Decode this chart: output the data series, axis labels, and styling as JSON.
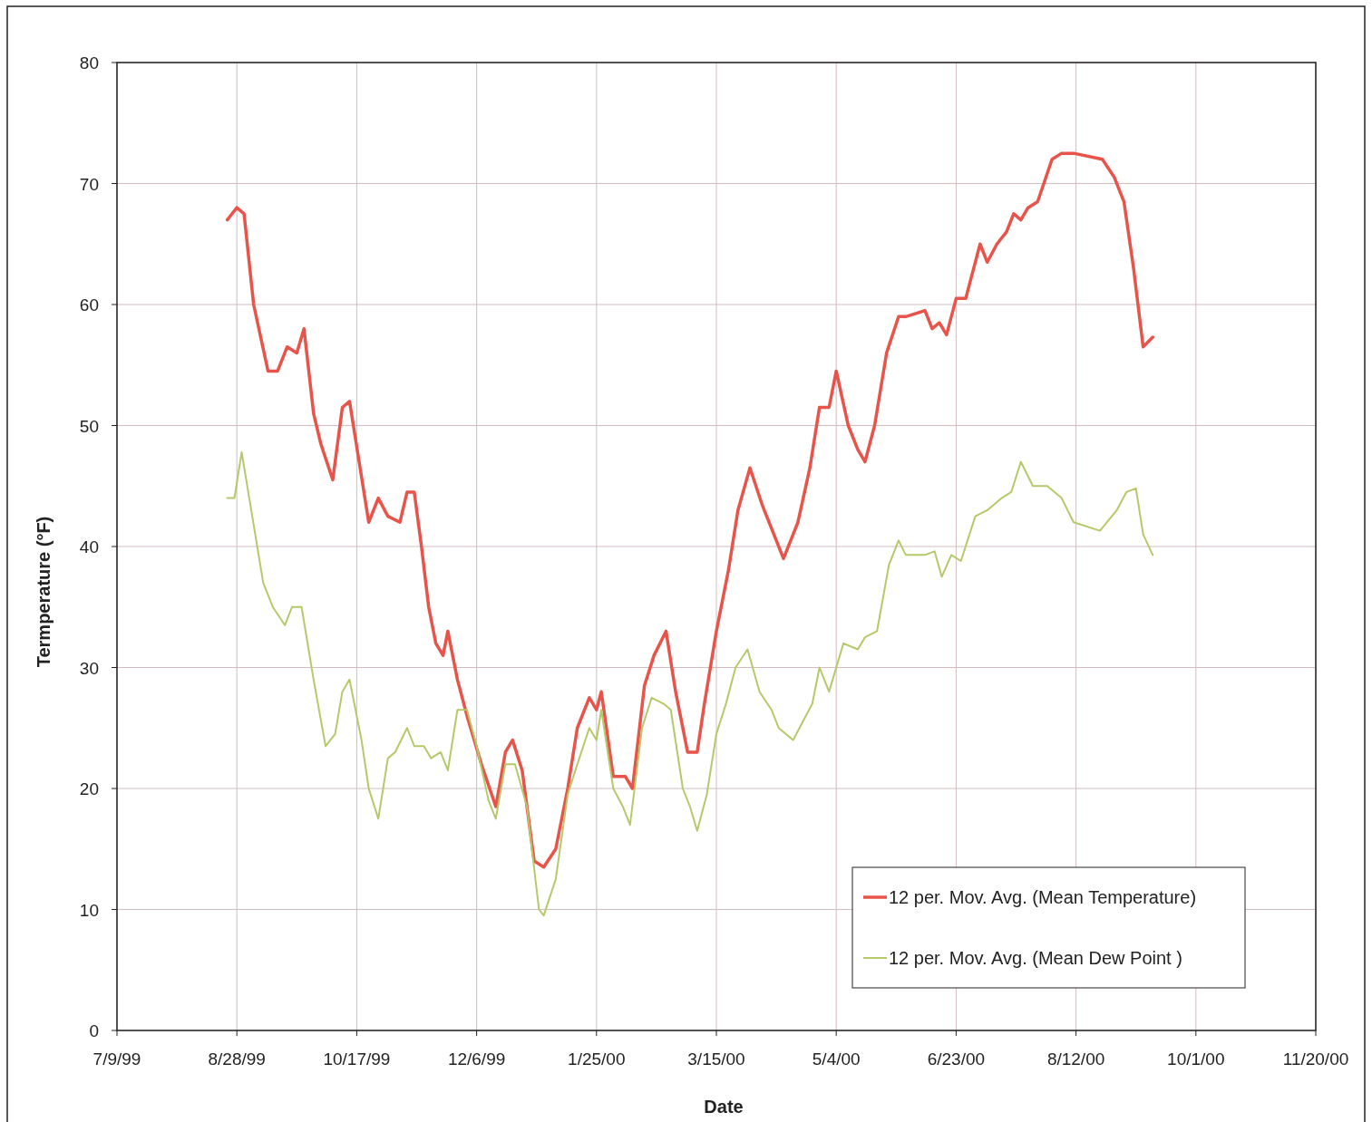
{
  "chart_data": {
    "type": "line",
    "xlabel": "Date",
    "ylabel": "Termperature (°F)",
    "xlim": [
      "1999-07-09",
      "2000-11-20"
    ],
    "xticks": [
      {
        "value": "1999-07-09",
        "label": "7/9/99"
      },
      {
        "value": "1999-08-28",
        "label": "8/28/99"
      },
      {
        "value": "1999-10-17",
        "label": "10/17/99"
      },
      {
        "value": "1999-12-06",
        "label": "12/6/99"
      },
      {
        "value": "2000-01-25",
        "label": "1/25/00"
      },
      {
        "value": "2000-03-15",
        "label": "3/15/00"
      },
      {
        "value": "2000-05-04",
        "label": "5/4/00"
      },
      {
        "value": "2000-06-23",
        "label": "6/23/00"
      },
      {
        "value": "2000-08-12",
        "label": "8/12/00"
      },
      {
        "value": "2000-10-01",
        "label": "10/1/00"
      },
      {
        "value": "2000-11-20",
        "label": "11/20/00"
      }
    ],
    "ylim": [
      0,
      80
    ],
    "yticks": [
      0,
      10,
      20,
      30,
      40,
      50,
      60,
      70,
      80
    ],
    "grid": true,
    "legend": "bottom right",
    "marker": "none",
    "line_style": "solid",
    "series": [
      {
        "name": "12 per. Mov. Avg. (Mean Temperature)",
        "color": "#e8534a",
        "x": [
          "1999-08-24",
          "1999-08-28",
          "1999-08-31",
          "1999-09-04",
          "1999-09-10",
          "1999-09-14",
          "1999-09-18",
          "1999-09-22",
          "1999-09-25",
          "1999-09-29",
          "1999-10-02",
          "1999-10-07",
          "1999-10-11",
          "1999-10-14",
          "1999-10-18",
          "1999-10-22",
          "1999-10-26",
          "1999-10-30",
          "1999-11-04",
          "1999-11-07",
          "1999-11-10",
          "1999-11-13",
          "1999-11-16",
          "1999-11-19",
          "1999-11-22",
          "1999-11-24",
          "1999-11-28",
          "1999-12-02",
          "1999-12-08",
          "1999-12-14",
          "1999-12-18",
          "1999-12-21",
          "1999-12-25",
          "1999-12-30",
          "2000-01-03",
          "2000-01-08",
          "2000-01-13",
          "2000-01-17",
          "2000-01-22",
          "2000-01-25",
          "2000-01-27",
          "2000-02-01",
          "2000-02-06",
          "2000-02-09",
          "2000-02-14",
          "2000-02-18",
          "2000-02-23",
          "2000-02-27",
          "2000-03-03",
          "2000-03-07",
          "2000-03-10",
          "2000-03-15",
          "2000-03-20",
          "2000-03-24",
          "2000-03-29",
          "2000-04-03",
          "2000-04-09",
          "2000-04-12",
          "2000-04-18",
          "2000-04-23",
          "2000-04-27",
          "2000-05-01",
          "2000-05-04",
          "2000-05-09",
          "2000-05-13",
          "2000-05-16",
          "2000-05-20",
          "2000-05-25",
          "2000-05-30",
          "2000-06-02",
          "2000-06-10",
          "2000-06-13",
          "2000-06-16",
          "2000-06-19",
          "2000-06-23",
          "2000-06-27",
          "2000-07-03",
          "2000-07-06",
          "2000-07-10",
          "2000-07-14",
          "2000-07-17",
          "2000-07-20",
          "2000-07-23",
          "2000-07-27",
          "2000-08-02",
          "2000-08-06",
          "2000-08-11",
          "2000-08-23",
          "2000-08-28",
          "2000-09-01",
          "2000-09-05",
          "2000-09-09",
          "2000-09-13"
        ],
        "values": [
          67,
          68,
          67.5,
          60,
          54.5,
          54.5,
          56.5,
          56,
          58,
          51,
          48.5,
          45.5,
          51.5,
          52,
          47,
          42,
          44,
          42.5,
          42,
          44.5,
          44.5,
          40,
          35,
          32,
          31,
          33,
          29,
          26,
          22,
          18.5,
          23,
          24,
          21.5,
          14,
          13.5,
          15,
          20,
          25,
          27.5,
          26.5,
          28,
          21,
          21,
          20,
          28.5,
          31,
          33,
          28,
          23,
          23,
          27,
          33,
          38,
          43,
          46.5,
          43.5,
          40.5,
          39,
          42,
          46.5,
          51.5,
          51.5,
          54.5,
          50,
          48,
          47,
          50,
          56,
          59,
          59,
          59.5,
          58,
          58.5,
          57.5,
          60.5,
          60.5,
          65,
          63.5,
          65,
          66,
          67.5,
          67,
          68,
          68.5,
          72,
          72.5,
          72.5,
          72,
          70.5,
          68.5,
          63,
          56.5,
          57.3
        ]
      },
      {
        "name": "12 per. Mov. Avg. (Mean Dew Point )",
        "color": "#b5c96a",
        "x": [
          "1999-08-24",
          "1999-08-27",
          "1999-08-30",
          "1999-09-03",
          "1999-09-08",
          "1999-09-12",
          "1999-09-17",
          "1999-09-20",
          "1999-09-24",
          "1999-09-29",
          "1999-10-04",
          "1999-10-08",
          "1999-10-11",
          "1999-10-14",
          "1999-10-19",
          "1999-10-22",
          "1999-10-26",
          "1999-10-30",
          "1999-11-02",
          "1999-11-07",
          "1999-11-10",
          "1999-11-14",
          "1999-11-17",
          "1999-11-21",
          "1999-11-24",
          "1999-11-28",
          "1999-12-02",
          "1999-12-06",
          "1999-12-11",
          "1999-12-14",
          "1999-12-18",
          "1999-12-22",
          "1999-12-27",
          "2000-01-01",
          "2000-01-03",
          "2000-01-08",
          "2000-01-13",
          "2000-01-17",
          "2000-01-22",
          "2000-01-25",
          "2000-01-27",
          "2000-02-01",
          "2000-02-05",
          "2000-02-08",
          "2000-02-13",
          "2000-02-17",
          "2000-02-22",
          "2000-02-25",
          "2000-03-01",
          "2000-03-04",
          "2000-03-07",
          "2000-03-11",
          "2000-03-15",
          "2000-03-19",
          "2000-03-23",
          "2000-03-28",
          "2000-04-02",
          "2000-04-07",
          "2000-04-10",
          "2000-04-16",
          "2000-04-20",
          "2000-04-24",
          "2000-04-27",
          "2000-05-01",
          "2000-05-07",
          "2000-05-13",
          "2000-05-16",
          "2000-05-21",
          "2000-05-26",
          "2000-05-30",
          "2000-06-02",
          "2000-06-10",
          "2000-06-14",
          "2000-06-17",
          "2000-06-21",
          "2000-06-25",
          "2000-07-01",
          "2000-07-06",
          "2000-07-12",
          "2000-07-16",
          "2000-07-20",
          "2000-07-25",
          "2000-07-31",
          "2000-08-06",
          "2000-08-11",
          "2000-08-22",
          "2000-08-29",
          "2000-09-02",
          "2000-09-06",
          "2000-09-09",
          "2000-09-13"
        ],
        "values": [
          44,
          44,
          47.8,
          43,
          37,
          35,
          33.5,
          35,
          35,
          29,
          23.5,
          24.5,
          28,
          29,
          24,
          20,
          17.5,
          22.5,
          23,
          25,
          23.5,
          23.5,
          22.5,
          23,
          21.5,
          26.5,
          26.5,
          23.5,
          19,
          17.5,
          22,
          22,
          18.5,
          10,
          9.5,
          12.5,
          19.5,
          22,
          25,
          24,
          26.5,
          20,
          18.5,
          17,
          25,
          27.5,
          27,
          26.5,
          20,
          18.5,
          16.5,
          19.5,
          24.5,
          27,
          30,
          31.5,
          28,
          26.5,
          25,
          24,
          25.5,
          27,
          30,
          28,
          32,
          31.5,
          32.5,
          33,
          38.5,
          40.5,
          39.3,
          39.3,
          39.6,
          37.5,
          39.3,
          38.8,
          42.5,
          43,
          44,
          44.5,
          47,
          45,
          45,
          44,
          42,
          41.3,
          43,
          44.5,
          44.8,
          41,
          39.3
        ]
      }
    ]
  }
}
